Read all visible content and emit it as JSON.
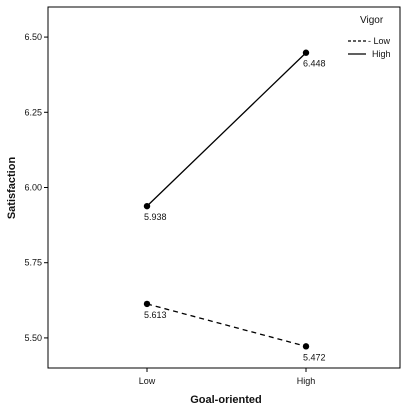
{
  "chart_data": {
    "type": "line",
    "title": "",
    "xlabel": "Goal-oriented",
    "ylabel": "Satisfaction",
    "categories": [
      "Low",
      "High"
    ],
    "y_ticks": [
      "5.50",
      "5.75",
      "6.00",
      "6.25",
      "6.50"
    ],
    "ylim": [
      5.4,
      6.6
    ],
    "grid": false,
    "legend": {
      "title": "Vigor",
      "placement": "top-right"
    },
    "series": [
      {
        "name": "Low",
        "style": "dashed",
        "values": [
          5.613,
          5.472
        ],
        "labels": [
          "5.613",
          "5.472"
        ]
      },
      {
        "name": "High",
        "style": "solid",
        "values": [
          5.938,
          6.448
        ],
        "labels": [
          "5.938",
          "6.448"
        ]
      }
    ],
    "legend_items": [
      "- Low",
      "High"
    ]
  }
}
